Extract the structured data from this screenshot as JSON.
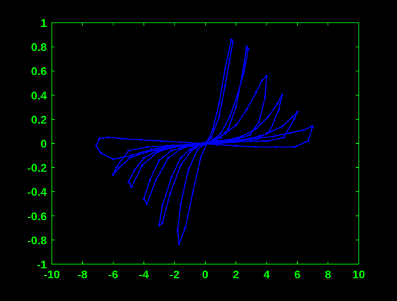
{
  "figure": {
    "background": "#000000",
    "axis_color": "#00ff00",
    "line_color": "#0000ff"
  },
  "chart_data": {
    "type": "line",
    "title": "",
    "xlabel": "",
    "ylabel": "",
    "xlim": [
      -10,
      10
    ],
    "ylim": [
      -1,
      1
    ],
    "xticks": [
      "-10",
      "-8",
      "-6",
      "-4",
      "-2",
      "0",
      "2",
      "4",
      "6",
      "8",
      "10"
    ],
    "yticks": [
      "-1",
      "-0.8",
      "-0.6",
      "-0.4",
      "-0.2",
      "0",
      "0.2",
      "0.4",
      "0.6",
      "0.8",
      "1"
    ],
    "grid": false,
    "series": [
      {
        "color": "#0000ff",
        "marker": "dot",
        "x": [
          0,
          0.4,
          0.9,
          1.3,
          1.6,
          1.8,
          1.7,
          1.3,
          0.9,
          0.5,
          0.2,
          -0.1,
          -0.5,
          -1.1,
          -1.6,
          -1.8,
          -1.7,
          -1.3,
          -0.8,
          -0.3,
          0.1,
          0.5,
          1.0,
          1.6,
          2.1,
          2.5,
          2.8,
          2.7,
          2.4,
          2.0,
          1.5,
          1.0,
          0.5,
          0.0,
          -0.5,
          -1.0,
          -1.6,
          -2.2,
          -2.8,
          -3.0,
          -2.8,
          -2.3,
          -1.6,
          -0.9,
          -0.3,
          0.2,
          0.7,
          1.3,
          2.0,
          2.7,
          3.3,
          3.7,
          4.0,
          3.9,
          3.5,
          2.9,
          2.2,
          1.5,
          0.8,
          0.1,
          -0.6,
          -1.4,
          -2.2,
          -3.0,
          -3.6,
          -4.0,
          -3.8,
          -3.2,
          -2.4,
          -1.5,
          -0.7,
          0.0,
          0.7,
          1.5,
          2.4,
          3.3,
          4.1,
          4.7,
          5.0,
          4.8,
          4.2,
          3.4,
          2.5,
          1.6,
          0.7,
          -0.2,
          -1.1,
          -2.1,
          -3.1,
          -4.0,
          -4.6,
          -5.0,
          -4.8,
          -4.1,
          -3.1,
          -2.0,
          -1.0,
          -0.1,
          0.8,
          1.8,
          2.9,
          4.0,
          5.0,
          5.7,
          6.0,
          5.8,
          5.1,
          4.1,
          3.0,
          1.9,
          0.8,
          -0.3,
          -1.4,
          -2.6,
          -3.8,
          -4.9,
          -5.6,
          -6.0,
          -5.8,
          -5.0,
          -3.8,
          -2.5,
          -1.2,
          0.0,
          1.0,
          2.1,
          3.3,
          4.5,
          5.6,
          6.4,
          6.9,
          7.0,
          6.7,
          5.8,
          4.6,
          3.3,
          2.0,
          0.8,
          -0.4,
          -1.6,
          -2.9,
          -4.2,
          -5.4,
          -6.3,
          -6.9,
          -7.1,
          -6.8,
          -6.0,
          -4.8,
          -3.5,
          -2.2,
          -1.0,
          0.0
        ],
        "y": [
          0.0,
          0.05,
          0.22,
          0.48,
          0.7,
          0.84,
          0.86,
          0.62,
          0.33,
          0.12,
          0.03,
          -0.01,
          -0.05,
          -0.22,
          -0.5,
          -0.72,
          -0.83,
          -0.7,
          -0.4,
          -0.12,
          0.0,
          0.03,
          0.08,
          0.22,
          0.4,
          0.58,
          0.78,
          0.8,
          0.56,
          0.3,
          0.12,
          0.05,
          0.02,
          0.0,
          -0.02,
          -0.05,
          -0.12,
          -0.28,
          -0.52,
          -0.68,
          -0.66,
          -0.42,
          -0.18,
          -0.06,
          -0.01,
          0.01,
          0.04,
          0.08,
          0.15,
          0.28,
          0.42,
          0.52,
          0.56,
          0.38,
          0.18,
          0.07,
          0.04,
          0.03,
          0.02,
          0.0,
          -0.02,
          -0.03,
          -0.06,
          -0.14,
          -0.3,
          -0.46,
          -0.5,
          -0.3,
          -0.12,
          -0.04,
          -0.01,
          0.0,
          0.02,
          0.03,
          0.06,
          0.12,
          0.22,
          0.33,
          0.4,
          0.28,
          0.1,
          0.04,
          0.03,
          0.02,
          0.01,
          0.0,
          -0.02,
          -0.03,
          -0.06,
          -0.12,
          -0.22,
          -0.32,
          -0.36,
          -0.18,
          -0.07,
          -0.03,
          -0.01,
          0.0,
          0.01,
          0.02,
          0.04,
          0.08,
          0.14,
          0.22,
          0.26,
          0.2,
          0.05,
          0.02,
          0.02,
          0.01,
          0.0,
          -0.01,
          -0.02,
          -0.04,
          -0.07,
          -0.12,
          -0.2,
          -0.26,
          -0.2,
          -0.06,
          -0.03,
          -0.02,
          -0.01,
          0.0,
          0.01,
          0.02,
          0.04,
          0.06,
          0.09,
          0.11,
          0.14,
          0.14,
          0.02,
          -0.03,
          -0.03,
          -0.03,
          -0.02,
          -0.01,
          0.0,
          0.01,
          0.02,
          0.03,
          0.04,
          0.05,
          0.04,
          -0.02,
          -0.08,
          -0.13,
          -0.1,
          -0.05,
          -0.02,
          -0.01,
          0.0
        ]
      }
    ]
  }
}
